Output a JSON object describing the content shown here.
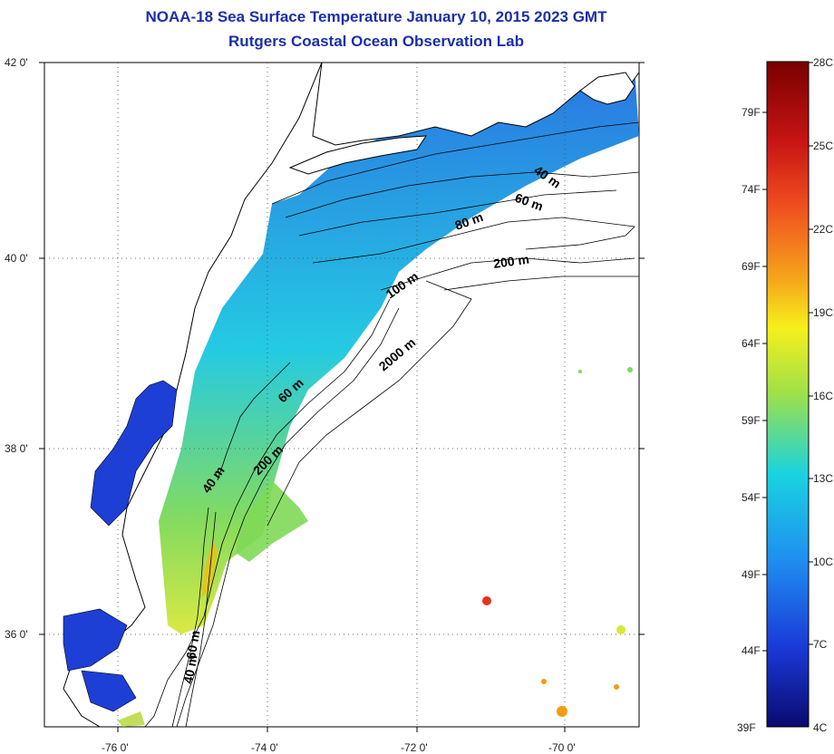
{
  "title": {
    "line1": "NOAA-18 Sea Surface Temperature January 10, 2015 2023 GMT",
    "line2": "Rutgers Coastal Ocean Observation Lab"
  },
  "axes": {
    "lat_labels": [
      "42 0'",
      "40 0'",
      "38 0'",
      "36 0'"
    ],
    "lon_labels": [
      "-76 0'",
      "-74 0'",
      "-72 0'",
      "-70 0'"
    ]
  },
  "contour_labels": [
    "40 m",
    "60 m",
    "80 m",
    "60 m",
    "40 m",
    "40 m",
    "60 m",
    "100 m",
    "200 m",
    "200 m",
    "2000 m"
  ],
  "colorbar": {
    "celsius_labels": [
      "28C",
      "25C",
      "22C",
      "19C",
      "16C",
      "13C",
      "10C",
      "7C",
      "4C"
    ],
    "fahrenheit_labels": [
      "79F",
      "74F",
      "69F",
      "64F",
      "59F",
      "54F",
      "49F",
      "44F",
      "39F"
    ],
    "colors": {
      "warm": "#7a0000",
      "hot": "#e8321a",
      "orange": "#f39c12",
      "yellow": "#f6f01a",
      "green": "#7ed957",
      "cyan": "#19d3e0",
      "blue": "#1f6fe0",
      "deep": "#1a1aa8",
      "navy": "#0a0a70"
    }
  },
  "colors": {
    "title": "#1b2fa8",
    "land": "#ffffff",
    "coast": "#000000",
    "bay_water": "#1d3fd6"
  }
}
